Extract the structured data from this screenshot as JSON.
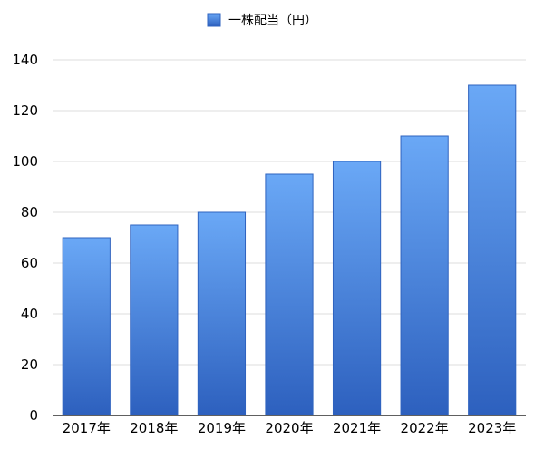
{
  "chart_data": {
    "type": "bar",
    "categories": [
      "2017年",
      "2018年",
      "2019年",
      "2020年",
      "2021年",
      "2022年",
      "2023年"
    ],
    "series": [
      {
        "name": "一株配当（円）",
        "values": [
          70,
          75,
          80,
          95,
          100,
          110,
          130
        ]
      }
    ],
    "ylim": [
      0,
      140
    ],
    "yticks": [
      "0",
      "20",
      "40",
      "60",
      "80",
      "100",
      "120",
      "140"
    ],
    "grid": true,
    "legend_position": "top-center",
    "colors": {
      "bar_top": "#6aa8f6",
      "bar_bottom": "#2d60be",
      "legend_swatch": "#3f7fe0"
    }
  }
}
